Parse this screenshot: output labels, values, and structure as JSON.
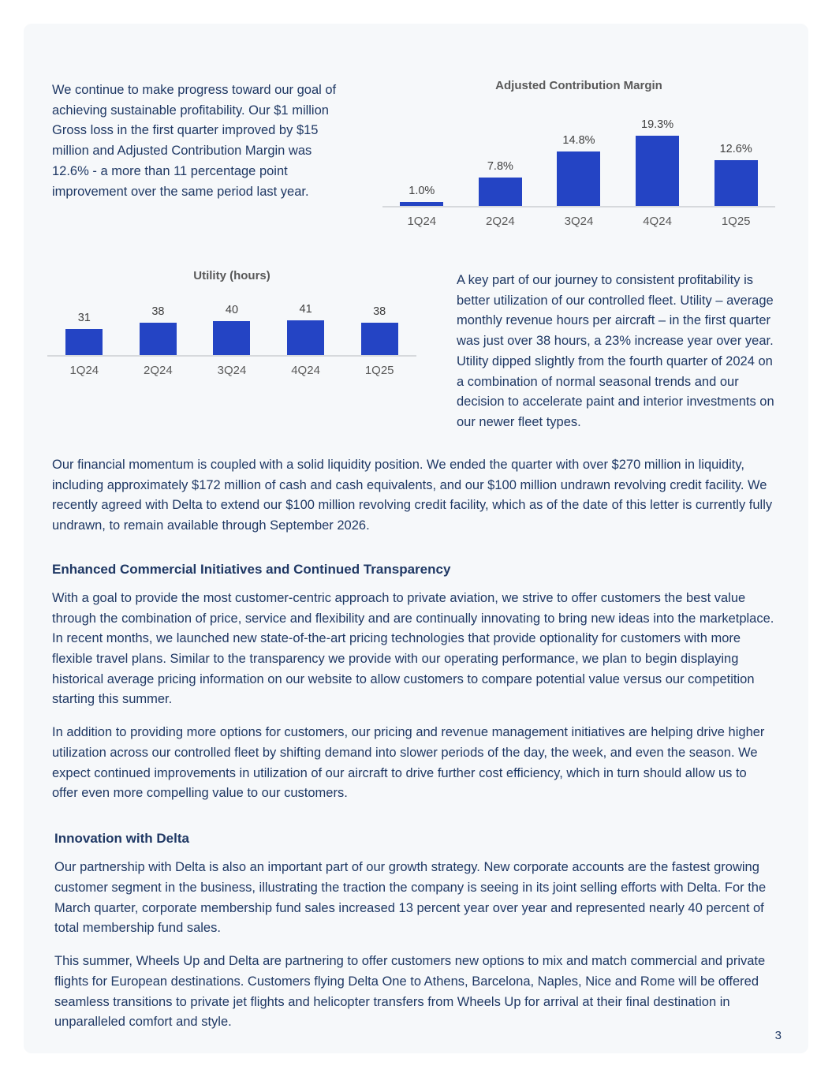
{
  "colors": {
    "bar_blue": "#2444c4",
    "body_navy": "#1f3864",
    "chart_gray": "#595959"
  },
  "intro": {
    "text": "We continue to make progress toward our goal of achieving sustainable profitability. Our $1 million Gross loss in the first quarter improved by $15 million and Adjusted Contribution Margin was 12.6% - a more than 11 percentage point improvement over the same period last year."
  },
  "chart_data": [
    {
      "type": "bar",
      "title": "Adjusted Contribution Margin",
      "categories": [
        "1Q24",
        "2Q24",
        "3Q24",
        "4Q24",
        "1Q25"
      ],
      "values": [
        1.0,
        7.8,
        14.8,
        19.3,
        12.6
      ],
      "value_labels": [
        "1.0%",
        "7.8%",
        "14.8%",
        "19.3%",
        "12.6%"
      ],
      "ylim": [
        0,
        22
      ],
      "bar_color": "#2444c4",
      "grid": false,
      "legend": "none"
    },
    {
      "type": "bar",
      "title": "Utility (hours)",
      "categories": [
        "1Q24",
        "2Q24",
        "3Q24",
        "4Q24",
        "1Q25"
      ],
      "values": [
        31,
        38,
        40,
        41,
        38
      ],
      "value_labels": [
        "31",
        "38",
        "40",
        "41",
        "38"
      ],
      "ylim": [
        0,
        45
      ],
      "bar_color": "#2444c4",
      "grid": false,
      "legend": "none"
    }
  ],
  "utility": {
    "text": "A key part of our journey to consistent profitability is better utilization of our controlled fleet.  Utility – average monthly revenue hours per aircraft – in the first quarter was just over 38 hours, a 23% increase year over year.  Utility dipped slightly from the fourth quarter of 2024 on a combination of normal seasonal trends and our decision to accelerate paint and interior investments on our newer fleet types."
  },
  "liquidity": {
    "text": "Our financial momentum is coupled with a solid liquidity position.  We ended the quarter with over $270 million in liquidity, including approximately $172 million of cash and cash equivalents, and our $100 million undrawn revolving credit facility.  We recently agreed with Delta to extend our $100 million revolving credit facility, which as of the date of this letter is currently fully undrawn, to remain available through September 2026."
  },
  "sections": [
    {
      "heading": "Enhanced Commercial Initiatives and Continued Transparency",
      "paragraphs": [
        "With a goal to provide the most customer-centric approach to private aviation, we strive to offer customers the best value through the combination of price, service and flexibility and are continually innovating to bring new ideas into the marketplace.  In recent months, we launched new state-of-the-art pricing technologies that provide optionality for customers with more flexible travel plans.  Similar to the transparency we provide with our operating performance, we plan to begin displaying historical average pricing information on our website to allow customers to compare potential value versus our competition starting this summer.",
        "In addition to providing more options for customers, our pricing and revenue management initiatives are helping drive higher utilization across our controlled fleet by shifting demand into slower periods of the day, the week, and even the season.   We expect continued improvements in utilization of our aircraft to drive further cost efficiency, which in turn should allow us to offer even more compelling value to our customers."
      ]
    },
    {
      "heading": "Innovation with Delta",
      "paragraphs": [
        "Our partnership with Delta is also an important part of our growth strategy. New corporate accounts are the fastest growing customer segment in the business, illustrating the traction the company is seeing in its joint selling efforts with Delta.  For the March quarter, corporate membership fund sales increased 13 percent year over year and represented nearly 40 percent of total membership fund sales.",
        "This summer, Wheels Up and Delta are partnering to offer customers new options to mix and match commercial and private flights for European destinations.  Customers flying Delta One to Athens, Barcelona, Naples, Nice and Rome will be offered seamless transitions to private jet flights and helicopter transfers from Wheels Up for arrival at their final destination in unparalleled comfort and style."
      ]
    }
  ],
  "page": {
    "number": "3"
  }
}
